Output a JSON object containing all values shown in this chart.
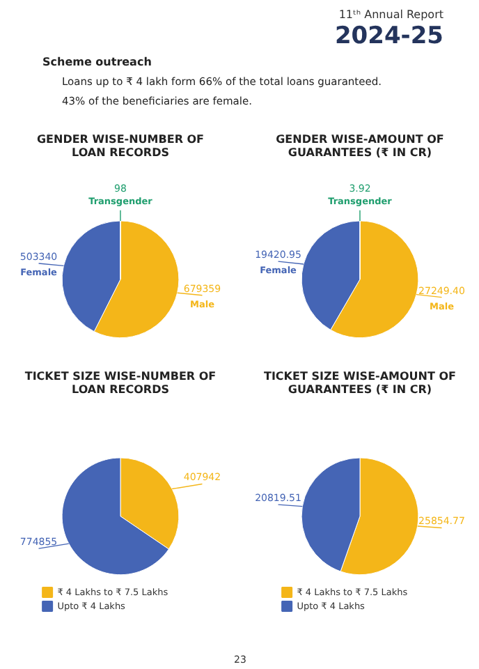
{
  "chart_data": [
    {
      "type": "pie",
      "title": "GENDER WISE-NUMBER OF\nLOAN RECORDS",
      "categories": [
        "Male",
        "Female",
        "Transgender"
      ],
      "values": [
        679359,
        503340,
        98
      ],
      "colors": [
        "#f4b619",
        "#4565b5",
        "#1f9e6e"
      ],
      "value_labels": [
        "679359",
        "503340",
        "98"
      ],
      "legend": false,
      "annotations": [
        "11ᵗʰ Annual Report",
        "2024-25",
        "Scheme outreach",
        "Loans up to ₹ 4 lakh form 66% of the total loans guaranteed.",
        "43% of the beneficiaries are female."
      ]
    },
    {
      "type": "pie",
      "title": "GENDER WISE-AMOUNT OF\nGUARANTEES (₹ IN CR)",
      "categories": [
        "Male",
        "Female",
        "Transgender"
      ],
      "values": [
        27249.4,
        19420.95,
        3.92
      ],
      "colors": [
        "#f4b619",
        "#4565b5",
        "#1f9e6e"
      ],
      "value_labels": [
        "27249.40",
        "19420.95",
        "3.92"
      ],
      "legend": false
    },
    {
      "type": "pie",
      "title": "TICKET SIZE WISE-NUMBER OF\nLOAN RECORDS",
      "categories": [
        "₹ 4 Lakhs to ₹ 7.5 Lakhs",
        "Upto ₹ 4 Lakhs"
      ],
      "values": [
        407942,
        774855
      ],
      "colors": [
        "#f4b619",
        "#4565b5"
      ],
      "value_labels": [
        "407942",
        "774855"
      ],
      "legend": "bottom"
    },
    {
      "type": "pie",
      "title": "TICKET SIZE WISE-AMOUNT OF\nGUARANTEES (₹ IN CR)",
      "categories": [
        "₹ 4 Lakhs to ₹ 7.5 Lakhs",
        "Upto ₹ 4 Lakhs"
      ],
      "values": [
        25854.77,
        20819.51
      ],
      "colors": [
        "#f4b619",
        "#4565b5"
      ],
      "value_labels": [
        "25854.77",
        "20819.51"
      ],
      "legend": "bottom",
      "annotations": [
        "23"
      ]
    }
  ]
}
